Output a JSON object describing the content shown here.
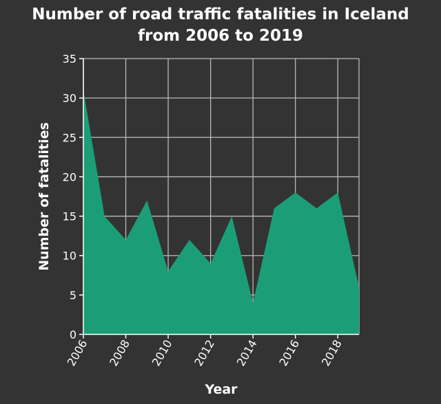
{
  "chart_data": {
    "type": "area",
    "title_lines": [
      "Number of road traffic fatalities in Iceland",
      "from 2006 to 2019"
    ],
    "xlabel": "Year",
    "ylabel": "Number of fatalities",
    "x": [
      2006,
      2007,
      2008,
      2009,
      2010,
      2011,
      2012,
      2013,
      2014,
      2015,
      2016,
      2017,
      2018,
      2019
    ],
    "series": [
      {
        "values": [
          31,
          15,
          12,
          17,
          8,
          12,
          9,
          15,
          4,
          16,
          18,
          16,
          18,
          6
        ]
      }
    ],
    "xlim": [
      2006,
      2019
    ],
    "ylim": [
      0,
      35
    ],
    "x_ticks": [
      "2006",
      "2008",
      "2010",
      "2012",
      "2014",
      "2016",
      "2018"
    ],
    "y_ticks": [
      "0",
      "5",
      "10",
      "15",
      "20",
      "25",
      "30",
      "35"
    ],
    "grid": true,
    "colors": {
      "background": "#333333",
      "fill": "#1b9e77",
      "grid": "#bbbbbb",
      "text": "#ffffff"
    }
  }
}
